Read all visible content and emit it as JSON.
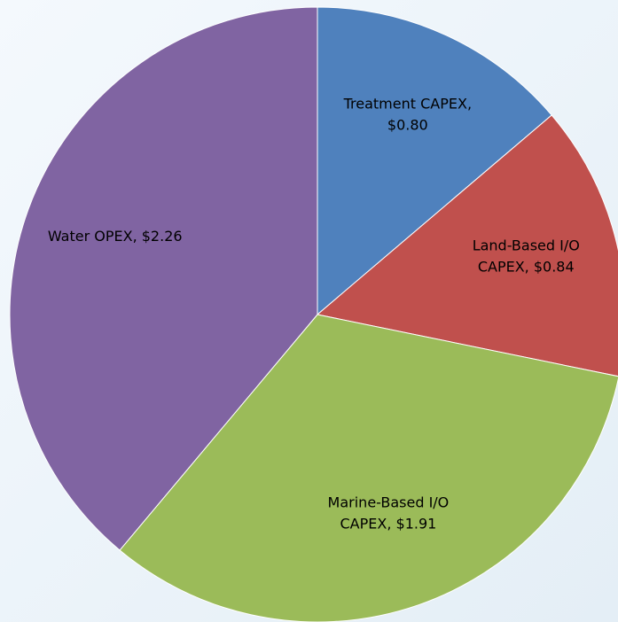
{
  "chart_data": {
    "type": "pie",
    "values": [
      0.8,
      0.84,
      1.91,
      2.26
    ],
    "value_labels": [
      [
        "Treatment CAPEX,",
        "$0.80"
      ],
      [
        "Land-Based I/O",
        "CAPEX, $0.84"
      ],
      [
        "Marine-Based I/O",
        "CAPEX, $1.91"
      ],
      [
        "Water OPEX, $2.26"
      ]
    ],
    "colors": [
      "#4f81bd",
      "#c0504d",
      "#9bbb59",
      "#8064a2"
    ]
  }
}
